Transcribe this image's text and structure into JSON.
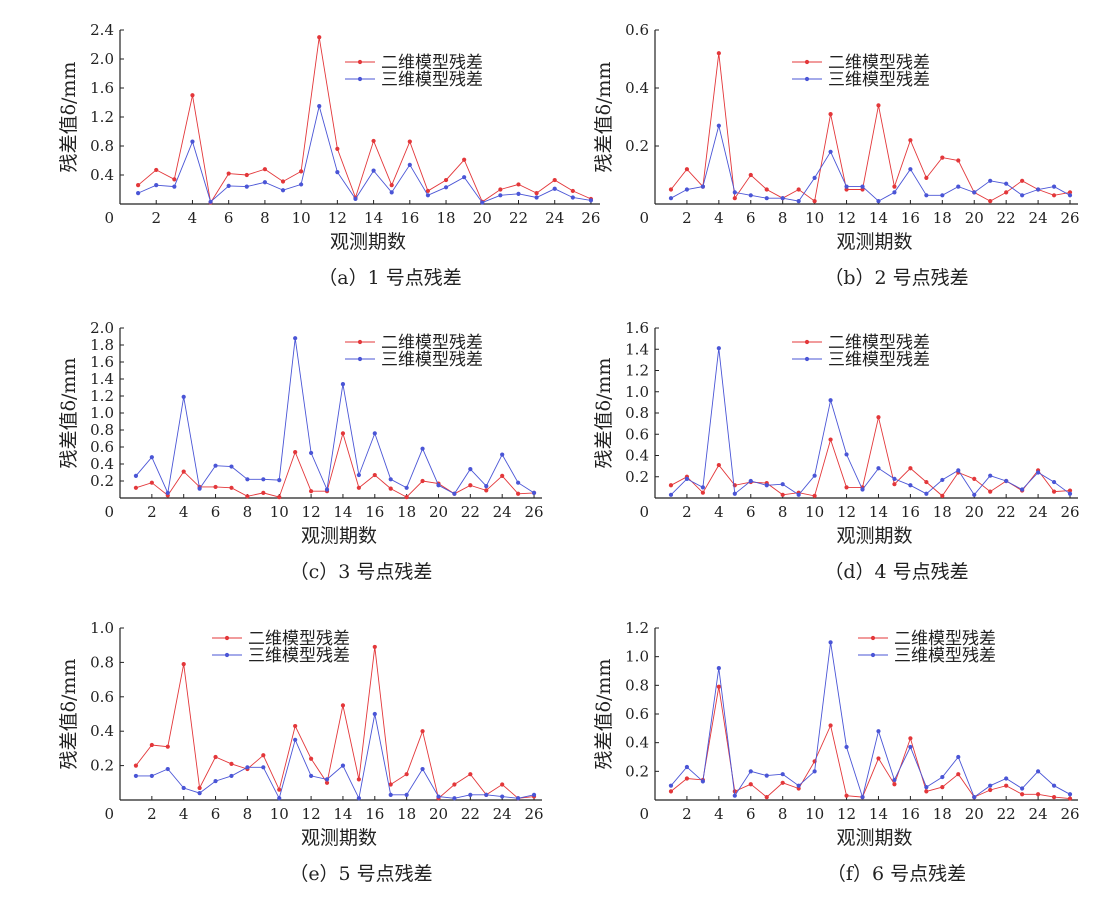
{
  "colors": {
    "series1": "#e3373a",
    "series2": "#4a55d6",
    "axis": "#222222"
  },
  "chart_data": [
    {
      "type": "line",
      "caption": "（a）1 号点残差",
      "xlabel": "观测期数",
      "ylabel": "残差值δ/mm",
      "xlim": [
        0,
        26.5
      ],
      "ylim": [
        0,
        2.4
      ],
      "xticks": [
        0,
        2,
        4,
        6,
        8,
        10,
        12,
        14,
        16,
        18,
        20,
        22,
        24,
        26
      ],
      "yticks": [
        0.4,
        0.8,
        1.2,
        1.6,
        2.0,
        2.4
      ],
      "ytick_labels": [
        "0.4",
        "0.8",
        "1.2",
        "1.6",
        "2.0",
        "2.4"
      ],
      "legend_position": "top-right",
      "x": [
        1,
        2,
        3,
        4,
        5,
        6,
        7,
        8,
        9,
        10,
        11,
        12,
        13,
        14,
        15,
        16,
        17,
        18,
        19,
        20,
        21,
        22,
        23,
        24,
        25,
        26
      ],
      "series": [
        {
          "name": "二维模型残差",
          "color": "#e3373a",
          "values": [
            0.26,
            0.47,
            0.34,
            1.5,
            0.02,
            0.42,
            0.4,
            0.48,
            0.31,
            0.45,
            2.3,
            0.76,
            0.09,
            0.87,
            0.26,
            0.86,
            0.18,
            0.33,
            0.61,
            0.03,
            0.2,
            0.27,
            0.15,
            0.33,
            0.18,
            0.07
          ]
        },
        {
          "name": "三维模型残差",
          "color": "#4a55d6",
          "values": [
            0.15,
            0.26,
            0.24,
            0.86,
            0.03,
            0.25,
            0.24,
            0.3,
            0.19,
            0.27,
            1.35,
            0.44,
            0.07,
            0.46,
            0.16,
            0.54,
            0.12,
            0.23,
            0.37,
            0.02,
            0.12,
            0.14,
            0.09,
            0.21,
            0.09,
            0.05
          ]
        }
      ]
    },
    {
      "type": "line",
      "caption": "（b）2 号点残差",
      "xlabel": "观测期数",
      "ylabel": "残差值δ/mm",
      "xlim": [
        0,
        26.5
      ],
      "ylim": [
        0,
        0.6
      ],
      "xticks": [
        0,
        2,
        4,
        6,
        8,
        10,
        12,
        14,
        16,
        18,
        20,
        22,
        24,
        26
      ],
      "yticks": [
        0.2,
        0.4,
        0.6
      ],
      "ytick_labels": [
        "0.2",
        "0.4",
        "0.6"
      ],
      "legend_position": "top-right",
      "x": [
        1,
        2,
        3,
        4,
        5,
        6,
        7,
        8,
        9,
        10,
        11,
        12,
        13,
        14,
        15,
        16,
        17,
        18,
        19,
        20,
        21,
        22,
        23,
        24,
        25,
        26
      ],
      "series": [
        {
          "name": "二维模型残差",
          "color": "#e3373a",
          "values": [
            0.05,
            0.12,
            0.06,
            0.52,
            0.02,
            0.1,
            0.05,
            0.02,
            0.05,
            0.01,
            0.31,
            0.05,
            0.05,
            0.34,
            0.06,
            0.22,
            0.09,
            0.16,
            0.15,
            0.04,
            0.01,
            0.04,
            0.08,
            0.05,
            0.03,
            0.04
          ]
        },
        {
          "name": "三维模型残差",
          "color": "#4a55d6",
          "values": [
            0.02,
            0.05,
            0.06,
            0.27,
            0.04,
            0.03,
            0.02,
            0.02,
            0.01,
            0.09,
            0.18,
            0.06,
            0.06,
            0.01,
            0.04,
            0.12,
            0.03,
            0.03,
            0.06,
            0.04,
            0.08,
            0.07,
            0.03,
            0.05,
            0.06,
            0.03
          ]
        }
      ]
    },
    {
      "type": "line",
      "caption": "（c）3 号点残差",
      "xlabel": "观测期数",
      "ylabel": "残差值δ/mm",
      "xlim": [
        0,
        26.5
      ],
      "ylim": [
        0,
        2.0
      ],
      "xticks": [
        0,
        2,
        4,
        6,
        8,
        10,
        12,
        14,
        16,
        18,
        20,
        22,
        24,
        26
      ],
      "yticks": [
        0.2,
        0.4,
        0.6,
        0.8,
        1.0,
        1.2,
        1.4,
        1.6,
        1.8,
        2.0
      ],
      "ytick_labels": [
        "0.2",
        "0.4",
        "0.6",
        "0.8",
        "1.0",
        "1.2",
        "1.4",
        "1.6",
        "1.8",
        "2.0"
      ],
      "legend_position": "top-right",
      "x": [
        1,
        2,
        3,
        4,
        5,
        6,
        7,
        8,
        9,
        10,
        11,
        12,
        13,
        14,
        15,
        16,
        17,
        18,
        19,
        20,
        21,
        22,
        23,
        24,
        25,
        26
      ],
      "series": [
        {
          "name": "二维模型残差",
          "color": "#e3373a",
          "values": [
            0.12,
            0.18,
            0.03,
            0.31,
            0.13,
            0.13,
            0.12,
            0.02,
            0.06,
            0.01,
            0.54,
            0.08,
            0.08,
            0.76,
            0.12,
            0.27,
            0.11,
            0.01,
            0.2,
            0.17,
            0.05,
            0.15,
            0.09,
            0.26,
            0.05,
            0.06
          ]
        },
        {
          "name": "三维模型残差",
          "color": "#4a55d6",
          "values": [
            0.26,
            0.48,
            0.06,
            1.19,
            0.11,
            0.38,
            0.37,
            0.22,
            0.22,
            0.21,
            1.88,
            0.53,
            0.1,
            1.34,
            0.27,
            0.76,
            0.22,
            0.12,
            0.58,
            0.15,
            0.05,
            0.34,
            0.14,
            0.51,
            0.18,
            0.06
          ]
        }
      ]
    },
    {
      "type": "line",
      "caption": "（d）4 号点残差",
      "xlabel": "观测期数",
      "ylabel": "残差值δ/mm",
      "xlim": [
        0,
        26.5
      ],
      "ylim": [
        0,
        1.6
      ],
      "xticks": [
        0,
        2,
        4,
        6,
        8,
        10,
        12,
        14,
        16,
        18,
        20,
        22,
        24,
        26
      ],
      "yticks": [
        0.2,
        0.4,
        0.6,
        0.8,
        1.0,
        1.2,
        1.4,
        1.6
      ],
      "ytick_labels": [
        "0.2",
        "0.4",
        "0.6",
        "0.8",
        "1.0",
        "1.2",
        "1.4",
        "1.6"
      ],
      "legend_position": "top-right",
      "x": [
        1,
        2,
        3,
        4,
        5,
        6,
        7,
        8,
        9,
        10,
        11,
        12,
        13,
        14,
        15,
        16,
        17,
        18,
        19,
        20,
        21,
        22,
        23,
        24,
        25,
        26
      ],
      "series": [
        {
          "name": "二维模型残差",
          "color": "#e3373a",
          "values": [
            0.12,
            0.2,
            0.05,
            0.31,
            0.12,
            0.15,
            0.14,
            0.03,
            0.05,
            0.02,
            0.55,
            0.1,
            0.1,
            0.76,
            0.13,
            0.28,
            0.15,
            0.02,
            0.24,
            0.18,
            0.06,
            0.16,
            0.07,
            0.26,
            0.06,
            0.07
          ]
        },
        {
          "name": "三维模型残差",
          "color": "#4a55d6",
          "values": [
            0.03,
            0.18,
            0.1,
            1.41,
            0.04,
            0.16,
            0.12,
            0.13,
            0.03,
            0.21,
            0.92,
            0.41,
            0.08,
            0.28,
            0.18,
            0.12,
            0.04,
            0.17,
            0.26,
            0.03,
            0.21,
            0.16,
            0.08,
            0.24,
            0.15,
            0.04
          ]
        }
      ]
    },
    {
      "type": "line",
      "caption": "（e）5 号点残差",
      "xlabel": "观测期数",
      "ylabel": "残差值δ/mm",
      "xlim": [
        0,
        26.5
      ],
      "ylim": [
        0,
        1.0
      ],
      "xticks": [
        0,
        2,
        4,
        6,
        8,
        10,
        12,
        14,
        16,
        18,
        20,
        22,
        24,
        26
      ],
      "yticks": [
        0.2,
        0.4,
        0.6,
        0.8,
        1.0
      ],
      "ytick_labels": [
        "0.2",
        "0.4",
        "0.6",
        "0.8",
        "1.0"
      ],
      "legend_position": "top-center",
      "x": [
        1,
        2,
        3,
        4,
        5,
        6,
        7,
        8,
        9,
        10,
        11,
        12,
        13,
        14,
        15,
        16,
        17,
        18,
        19,
        20,
        21,
        22,
        23,
        24,
        25,
        26
      ],
      "series": [
        {
          "name": "二维模型残差",
          "color": "#e3373a",
          "values": [
            0.2,
            0.32,
            0.31,
            0.79,
            0.07,
            0.25,
            0.21,
            0.18,
            0.26,
            0.06,
            0.43,
            0.24,
            0.1,
            0.55,
            0.12,
            0.89,
            0.09,
            0.15,
            0.4,
            0.01,
            0.09,
            0.15,
            0.03,
            0.09,
            0.01,
            0.02
          ]
        },
        {
          "name": "三维模型残差",
          "color": "#4a55d6",
          "values": [
            0.14,
            0.14,
            0.18,
            0.07,
            0.04,
            0.11,
            0.14,
            0.19,
            0.19,
            0.01,
            0.35,
            0.14,
            0.12,
            0.2,
            0.01,
            0.5,
            0.03,
            0.03,
            0.18,
            0.02,
            0.01,
            0.03,
            0.03,
            0.02,
            0.01,
            0.03
          ]
        }
      ]
    },
    {
      "type": "line",
      "caption": "（f）6 号点残差",
      "xlabel": "观测期数",
      "ylabel": "残差值δ/mm",
      "xlim": [
        0,
        26.5
      ],
      "ylim": [
        0,
        1.2
      ],
      "xticks": [
        0,
        2,
        4,
        6,
        8,
        10,
        12,
        14,
        16,
        18,
        20,
        22,
        24,
        26
      ],
      "yticks": [
        0.2,
        0.4,
        0.6,
        0.8,
        1.0,
        1.2
      ],
      "ytick_labels": [
        "0.2",
        "0.4",
        "0.6",
        "0.8",
        "1.0",
        "1.2"
      ],
      "legend_position": "top-right",
      "x": [
        1,
        2,
        3,
        4,
        5,
        6,
        7,
        8,
        9,
        10,
        11,
        12,
        13,
        14,
        15,
        16,
        17,
        18,
        19,
        20,
        21,
        22,
        23,
        24,
        25,
        26
      ],
      "series": [
        {
          "name": "二维模型残差",
          "color": "#e3373a",
          "values": [
            0.06,
            0.15,
            0.14,
            0.79,
            0.06,
            0.11,
            0.02,
            0.12,
            0.08,
            0.27,
            0.52,
            0.03,
            0.02,
            0.29,
            0.11,
            0.43,
            0.06,
            0.09,
            0.18,
            0.02,
            0.07,
            0.1,
            0.04,
            0.04,
            0.02,
            0.01
          ]
        },
        {
          "name": "三维模型残差",
          "color": "#4a55d6",
          "values": [
            0.1,
            0.23,
            0.13,
            0.92,
            0.03,
            0.2,
            0.17,
            0.18,
            0.1,
            0.2,
            1.1,
            0.37,
            0.02,
            0.48,
            0.14,
            0.37,
            0.09,
            0.16,
            0.3,
            0.02,
            0.1,
            0.15,
            0.08,
            0.2,
            0.1,
            0.04
          ]
        }
      ]
    }
  ]
}
